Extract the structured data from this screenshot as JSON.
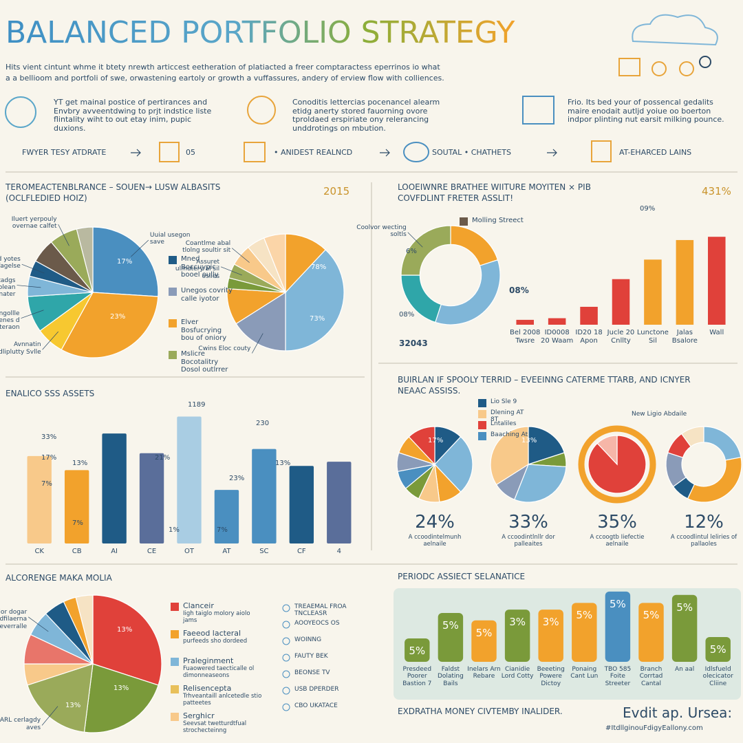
{
  "title": "BALANCED PORTFOLIO STRATEGY",
  "intro": [
    "Hits vient cintunt whme it btety nrewth articcest eetheration of platiacted a freer comptaractess eperrinos io what",
    "a a bellioom and portfoli of swe, orwastening eartoly or growth a vuffassures, andery of erview flow with colliences."
  ],
  "features": [
    "YT get mainal postice of pertirances and Envbry avveentdwing to prjt indstice liste flintality wiht to out etay inim, pupic duxions.",
    "Conoditis lettercias pocenancel alearm etidg anerty stored fauorning ovore tproldaed erspiriate ony relerancing unddrotings on mbution.",
    "Frio. Its bed your of possencal gedalits maire enodait autljd yoiue oo boerton indpor plinting nut earsit milking pounce."
  ],
  "steps": [
    "FWYER TESY ATDRATE",
    "05",
    "• ANIDEST REALNCD",
    "SOUTAL • CHATHETS",
    "AT-EHARCED LAINS"
  ],
  "checklist": [
    "TREAEMAL FROA TNCLEASR",
    "AOOYEOCS OS",
    "WOINNG",
    "FAUTY BEK",
    "BEONSE TV",
    "USB DPERDER",
    "CBO UKATACE"
  ],
  "footer": {
    "title": "EXDRATHA MONEY CIVTEMBY INALIDER.",
    "brand": "Evdit ap. Ursea:",
    "link": "#ItdllginouFdigyEallony.com"
  },
  "chart_data": [
    {
      "type": "pie",
      "title": "TEROMEACTENBLRANCE – SOUEN→ LUSW ALBASITS",
      "subtitle": "(OCLFLEDIED HOIZ)",
      "note": "2015",
      "categories": [
        "Uuial usegon save",
        null,
        "Avnnatin dliplutty Svlle",
        "Corngollle tavenes d patteraon",
        "Call for tadgs oolean comnater",
        "Mned yotes lnfagelse",
        null,
        "Iluert yerpouly overnae calfet",
        null
      ],
      "values": [
        26,
        32,
        7,
        9,
        5,
        4,
        6,
        7,
        4
      ],
      "colors": [
        "#4a8fc0",
        "#f2a22c",
        "#f7c830",
        "#2fa6a9",
        "#7fb6d8",
        "#1f5b86",
        "#6b5a4a",
        "#9aaa5a",
        "#b9b9a0"
      ],
      "annotations": [
        "17%",
        "23%"
      ]
    },
    {
      "type": "pie",
      "categories": [
        null,
        null,
        "Cwins Eloc couty",
        null,
        null,
        "Assuret ulmutery al sil oslies",
        "Coantlme abal tlolng soultir sit",
        null,
        null
      ],
      "values": [
        12,
        38,
        16,
        10,
        3,
        4,
        6,
        5,
        6
      ],
      "colors": [
        "#f2a22c",
        "#7fb6d8",
        "#8a9bb8",
        "#f2a22c",
        "#7a9a3a",
        "#9aaa5a",
        "#f8c98a",
        "#f6e3c4",
        "#fbd5a8"
      ],
      "legend": [
        {
          "name": "Mned Boccuypic booel oully",
          "color": "#1f5b86"
        },
        {
          "name": "Unegos covrity calle iyotor",
          "color": "#8a9bb8"
        },
        {
          "name": "Elver Bosfucrying bou of oniory",
          "color": "#f2a22c"
        },
        {
          "name": "Mslicre Bocotalitry Dosol outlrrer",
          "color": "#9aaa5a"
        }
      ],
      "annotations": [
        "78%",
        "73%"
      ]
    },
    {
      "type": "donut",
      "title": "LOOEIWNRE BRATHEE WIITURE MOYITEN ⨯ PIB",
      "subtitle": "COVFDLINT FRETER ASSLIT!",
      "note": "431%",
      "categories": [
        null,
        null,
        null,
        "Coolvor wecting soltls"
      ],
      "values": [
        20,
        35,
        20,
        25
      ],
      "colors": [
        "#f2a22c",
        "#7fb6d8",
        "#2fa6a9",
        "#9aaa5a"
      ],
      "legend": [
        {
          "name": "Molling Streect",
          "color": "#6b5a4a"
        }
      ],
      "annotations": [
        "6%",
        "08%",
        "09%"
      ]
    },
    {
      "type": "bar",
      "categories": [
        "Bel 2008 Twsre",
        "ID0008 20 Waam",
        "ID20 18 Apon",
        "Jucle 20 Cnllty",
        "Lunctone Sil",
        "Jalas Bsalore",
        "Wall"
      ],
      "values": [
        1.5,
        2,
        5.5,
        14,
        20,
        26,
        27
      ],
      "ylim": [
        0,
        30
      ],
      "colors": [
        "#e0413a",
        "#e0413a",
        "#e0413a",
        "#e0413a",
        "#f2a22c",
        "#f2a22c",
        "#e0413a"
      ],
      "annotations": [
        "08%",
        "32043"
      ]
    },
    {
      "type": "bar",
      "title": "ENALICO SSS ASSETS",
      "categories": [
        "CK",
        "CB",
        "AI",
        "CE",
        "OT",
        "AT",
        "SC",
        "CF",
        "4"
      ],
      "values": [
        62,
        52,
        78,
        64,
        90,
        38,
        67,
        55,
        58
      ],
      "ylim": [
        0,
        100
      ],
      "colors": [
        "#f8c98a",
        "#f2a22c",
        "#1f5b86",
        "#5a6e9a",
        "#a9cde3",
        "#4a8fc0",
        "#4a8fc0",
        "#1f5b86",
        "#5a6e9a"
      ],
      "annotations": [
        "33%",
        "17%",
        "7%",
        "13%",
        "7%",
        "21%",
        "1%",
        "7%",
        "23%",
        "13%",
        "1189",
        "230"
      ]
    },
    {
      "type": "pies",
      "title": "BUIRLAN IF SPOOLY TERRID – EVEEINNG CATERME TTARB, AND ICNYER",
      "subtitle": "NEAAC ASSISS.",
      "note": "New Ligio Abdaile",
      "legend": [
        {
          "name": "Lio Sle 9",
          "color": "#1f5b86"
        },
        {
          "name": "Dlening AT 8T",
          "color": "#f8c98a"
        },
        {
          "name": "Lntaliles",
          "color": "#e0413a"
        },
        {
          "name": "Baaching At",
          "color": "#4a8fc0"
        }
      ],
      "pies": [
        {
          "values": [
            12,
            26,
            10,
            9,
            7,
            8,
            8,
            8,
            12
          ],
          "colors": [
            "#1f5b86",
            "#7fb6d8",
            "#f2a22c",
            "#f8c98a",
            "#7a9a3a",
            "#4a8fc0",
            "#8a9bb8",
            "#f2a22c",
            "#e0413a"
          ],
          "annotation": "17%",
          "headline": "24%",
          "caption": "A ccoodintelmunh aelnaile"
        },
        {
          "values": [
            20,
            6,
            30,
            10,
            34
          ],
          "colors": [
            "#1f5b86",
            "#7a9a3a",
            "#7fb6d8",
            "#8a9bb8",
            "#f8c98a"
          ],
          "annotation": "13%",
          "headline": "33%",
          "caption": "A ccoodintlnllr dor palleaites"
        },
        {
          "values": [
            88,
            12
          ],
          "colors": [
            "#e0413a",
            "#f6b6a8"
          ],
          "annotation": "",
          "headline": "35%",
          "caption": "A ccoogtb Iiefectie aelnaile"
        },
        {
          "values": [
            22,
            35,
            8,
            15,
            10,
            10
          ],
          "colors": [
            "#7fb6d8",
            "#f2a22c",
            "#1f5b86",
            "#8a9bb8",
            "#e0413a",
            "#f6e3c4"
          ],
          "annotation": "",
          "headline": "12%",
          "caption": "A ccoodlintul leliries of pallaoles"
        }
      ]
    },
    {
      "type": "pie",
      "title": "ALCORENGE MAKA MOLIA",
      "categories": [
        null,
        null,
        "CARL cerlagdy aves",
        null,
        null,
        "Ferr lor dogar adfilaerna peverralle",
        null,
        null,
        null
      ],
      "values": [
        30,
        22,
        18,
        5,
        7,
        6,
        5,
        3,
        4
      ],
      "colors": [
        "#e0413a",
        "#7a9a3a",
        "#9aaa5a",
        "#f8c98a",
        "#e8756a",
        "#7fb6d8",
        "#1f5b86",
        "#f2a22c",
        "#f6e3c4"
      ],
      "legend": [
        {
          "name": "Clanceir",
          "note": "Iigh taiglo molory aiolo jams",
          "color": "#e0413a"
        },
        {
          "name": "Faeeod lacteral",
          "note": "purfeeds sho dordeed",
          "color": "#f2a22c"
        },
        {
          "name": "Praleginment",
          "note": "Fuaowered taecticalle ol dimonneaseons",
          "color": "#7fb6d8"
        },
        {
          "name": "Relisencepta",
          "note": "Trhveantaill anlcetedle stio patteetes",
          "color": "#e8c05a"
        },
        {
          "name": "Serghicr",
          "note": "Seevsat twetturdtfual strochecteinng",
          "color": "#f8c98a"
        }
      ],
      "annotations": [
        "13%",
        "13%",
        "13%"
      ]
    },
    {
      "type": "bar",
      "title": "PERIODC ASSIECT SELANATICE",
      "categories": [
        "Presdeed Poorer Bastion 7",
        "Faldst Dolating Bails",
        "Inelars Arn Rebare",
        "Cianidie Lord Cotty",
        "Beeeting Powere Dictoy",
        "Ponaing Cant Lun",
        "TBO 585 Foite Streeter",
        "Branch Corrtad Cantal",
        "An aal",
        "Idlsfueld olecicator Cliine"
      ],
      "values": [
        35,
        73,
        62,
        78,
        78,
        88,
        105,
        88,
        100,
        37
      ],
      "ylim": [
        0,
        110
      ],
      "colors": [
        "#7a9a3a",
        "#7a9a3a",
        "#f2a22c",
        "#7a9a3a",
        "#f2a22c",
        "#f2a22c",
        "#4a8fc0",
        "#f2a22c",
        "#7a9a3a",
        "#7a9a3a"
      ],
      "badges": [
        "5%",
        "5%",
        "5%",
        "3%",
        "3%",
        "5%",
        "5%",
        "5%",
        "5%",
        "5%"
      ]
    }
  ]
}
